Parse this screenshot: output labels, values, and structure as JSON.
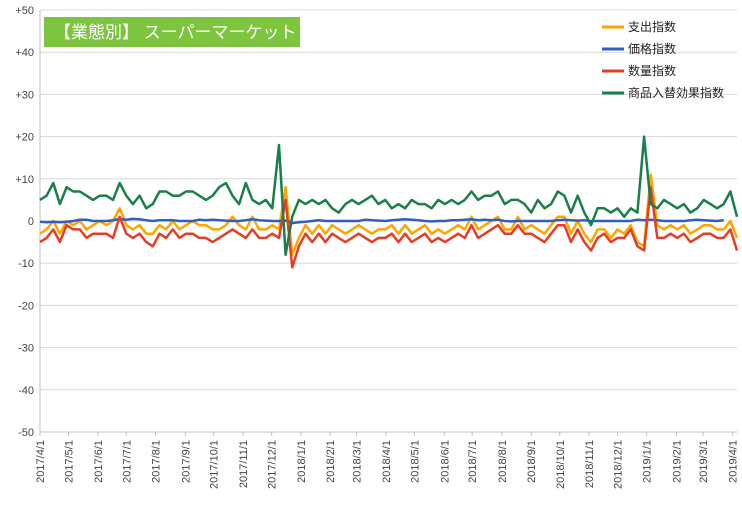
{
  "chart_data": {
    "type": "line",
    "title": "【業態別】 スーパーマーケット",
    "xlabel": "",
    "ylabel": "",
    "ylim": [
      -50,
      50
    ],
    "yticks": [
      50,
      40,
      30,
      20,
      10,
      0,
      -10,
      -20,
      -30,
      -40,
      -50
    ],
    "ytick_labels": [
      "+50",
      "+40",
      "+30",
      "+20",
      "+10",
      "0",
      "-10",
      "-20",
      "-30",
      "-40",
      "-50"
    ],
    "grid": true,
    "legend_position": "top-right",
    "x_tick_labels": [
      "2017/4/1",
      "2017/5/1",
      "2017/6/1",
      "2017/7/1",
      "2017/8/1",
      "2017/9/1",
      "2017/10/1",
      "2017/11/1",
      "2017/12/1",
      "2018/1/1",
      "2018/2/1",
      "2018/3/1",
      "2018/4/1",
      "2018/5/1",
      "2018/6/1",
      "2018/7/1",
      "2018/8/1",
      "2018/9/1",
      "2018/10/1",
      "2018/11/1",
      "2018/12/1",
      "2019/1/1",
      "2019/2/1",
      "2019/3/1",
      "2019/4/1"
    ],
    "x_tick_weeks": [
      0,
      4.3,
      8.7,
      13,
      17.4,
      21.9,
      26.1,
      30.6,
      34.9,
      39.3,
      43.7,
      47.7,
      52.1,
      56.4,
      60.9,
      65.1,
      69.6,
      74,
      78.3,
      82.7,
      87,
      91.4,
      95.9,
      99.9,
      104.3
    ],
    "series": [
      {
        "name": "支出指数",
        "color": "#FFA500",
        "values": [
          -3,
          -2,
          0,
          -3,
          0,
          -1,
          0,
          -2,
          -1,
          0,
          -1,
          0,
          3,
          -1,
          -2,
          -1,
          -3,
          -3,
          -1,
          -2,
          0,
          -2,
          -1,
          0,
          -1,
          -1,
          -2,
          -2,
          -1,
          1,
          -1,
          -2,
          1,
          -2,
          -2,
          -1,
          -2,
          8,
          -8,
          -4,
          -1,
          -3,
          -1,
          -3,
          -1,
          -2,
          -3,
          -2,
          -1,
          -2,
          -3,
          -2,
          -2,
          -1,
          -3,
          -1,
          -3,
          -2,
          -1,
          -3,
          -2,
          -3,
          -2,
          -1,
          -2,
          1,
          -2,
          -1,
          0,
          1,
          -2,
          -2,
          1,
          -2,
          -1,
          -2,
          -3,
          -1,
          1,
          1,
          -3,
          0,
          -3,
          -5,
          -2,
          -2,
          -4,
          -2,
          -3,
          -1,
          -5,
          -6,
          11,
          -1,
          -2,
          -1,
          -2,
          -1,
          -3,
          -2,
          -1,
          -1,
          -2,
          -2,
          0,
          -4
        ],
        "legend": true
      },
      {
        "name": "価格指数",
        "color": "#2F5FC0",
        "values": [
          -0.2,
          -0.3,
          -0.2,
          -0.3,
          -0.2,
          0,
          0.3,
          0.3,
          0,
          0,
          0,
          0.2,
          0.5,
          0.3,
          0.5,
          0.4,
          0.2,
          0,
          0.2,
          0.2,
          0.2,
          0,
          0,
          0,
          0.3,
          0.2,
          0.3,
          0.2,
          0.1,
          0,
          0,
          0.2,
          0.4,
          0.2,
          0.1,
          0,
          0,
          0.1,
          -0.5,
          -0.3,
          -0.2,
          0,
          0.2,
          0,
          0,
          0,
          0,
          0,
          0,
          0.3,
          0.2,
          0.1,
          0,
          0.2,
          0.3,
          0.4,
          0.3,
          0.2,
          0,
          -0.1,
          0,
          0,
          0.2,
          0.2,
          0.3,
          0.4,
          0.2,
          0.3,
          0.2,
          0.3,
          0,
          -0.1,
          0,
          0,
          0,
          0,
          0,
          0,
          0.2,
          0.3,
          0.2,
          0.1,
          0.2,
          0,
          0,
          0,
          0,
          0,
          0,
          0,
          0.3,
          0.2,
          0.3,
          0.2,
          0,
          0,
          0,
          0,
          0.2,
          0.3,
          0.2,
          0.1,
          0,
          0.2
        ],
        "legend": true
      },
      {
        "name": "数量指数",
        "color": "#E53E25",
        "values": [
          -5,
          -4,
          -2,
          -5,
          -1,
          -2,
          -2,
          -4,
          -3,
          -3,
          -3,
          -4,
          1,
          -3,
          -4,
          -3,
          -5,
          -6,
          -3,
          -4,
          -2,
          -4,
          -3,
          -3,
          -4,
          -4,
          -5,
          -4,
          -3,
          -2,
          -3,
          -4,
          -2,
          -4,
          -4,
          -3,
          -4,
          5,
          -11,
          -6,
          -3,
          -5,
          -3,
          -5,
          -3,
          -4,
          -5,
          -4,
          -3,
          -4,
          -5,
          -4,
          -4,
          -3,
          -5,
          -3,
          -5,
          -4,
          -3,
          -5,
          -4,
          -5,
          -4,
          -3,
          -4,
          -1,
          -4,
          -3,
          -2,
          -1,
          -3,
          -3,
          -1,
          -3,
          -3,
          -4,
          -5,
          -3,
          -1,
          -1,
          -5,
          -2,
          -5,
          -7,
          -4,
          -3,
          -5,
          -4,
          -4,
          -2,
          -6,
          -7,
          8,
          -4,
          -4,
          -3,
          -4,
          -3,
          -5,
          -4,
          -3,
          -3,
          -4,
          -4,
          -2,
          -7
        ],
        "legend": true
      },
      {
        "name": "商品入替効果指数",
        "color": "#1B7F4C",
        "values": [
          5,
          6,
          9,
          4,
          8,
          7,
          7,
          6,
          5,
          6,
          6,
          5,
          9,
          6,
          4,
          6,
          3,
          4,
          7,
          7,
          6,
          6,
          7,
          7,
          6,
          5,
          6,
          8,
          9,
          6,
          4,
          9,
          5,
          4,
          5,
          3,
          18,
          -8,
          1,
          5,
          4,
          5,
          4,
          5,
          3,
          2,
          4,
          5,
          4,
          5,
          6,
          4,
          5,
          3,
          4,
          3,
          5,
          4,
          4,
          3,
          5,
          4,
          5,
          4,
          5,
          7,
          5,
          6,
          6,
          7,
          4,
          5,
          5,
          4,
          2,
          5,
          3,
          4,
          7,
          6,
          2,
          6,
          2,
          -1,
          3,
          3,
          2,
          3,
          1,
          3,
          2,
          20,
          4,
          3,
          5,
          4,
          3,
          4,
          2,
          3,
          5,
          4,
          3,
          4,
          7,
          1
        ],
        "legend": true
      }
    ]
  }
}
